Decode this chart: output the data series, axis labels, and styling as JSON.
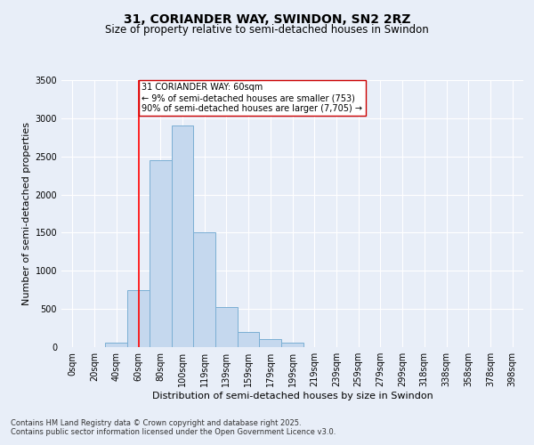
{
  "title_line1": "31, CORIANDER WAY, SWINDON, SN2 2RZ",
  "title_line2": "Size of property relative to semi-detached houses in Swindon",
  "xlabel": "Distribution of semi-detached houses by size in Swindon",
  "ylabel": "Number of semi-detached properties",
  "categories": [
    "0sqm",
    "20sqm",
    "40sqm",
    "60sqm",
    "80sqm",
    "100sqm",
    "119sqm",
    "139sqm",
    "159sqm",
    "179sqm",
    "199sqm",
    "219sqm",
    "239sqm",
    "259sqm",
    "279sqm",
    "299sqm",
    "318sqm",
    "338sqm",
    "358sqm",
    "378sqm",
    "398sqm"
  ],
  "values": [
    0,
    0,
    60,
    750,
    2450,
    2900,
    1500,
    520,
    200,
    100,
    60,
    0,
    0,
    0,
    0,
    0,
    0,
    0,
    0,
    0,
    0
  ],
  "bar_color": "#c5d8ee",
  "bar_edge_color": "#7bafd4",
  "bar_edge_width": 0.7,
  "vline_x_index": 3,
  "vline_color": "#ff0000",
  "ylim": [
    0,
    3500
  ],
  "yticks": [
    0,
    500,
    1000,
    1500,
    2000,
    2500,
    3000,
    3500
  ],
  "annotation_text": "31 CORIANDER WAY: 60sqm\n← 9% of semi-detached houses are smaller (753)\n90% of semi-detached houses are larger (7,705) →",
  "annotation_box_facecolor": "#ffffff",
  "annotation_box_edgecolor": "#cc0000",
  "footer_text": "Contains HM Land Registry data © Crown copyright and database right 2025.\nContains public sector information licensed under the Open Government Licence v3.0.",
  "background_color": "#e8eef8",
  "plot_background_color": "#e8eef8",
  "grid_color": "#ffffff",
  "title_fontsize": 10,
  "subtitle_fontsize": 8.5,
  "axis_label_fontsize": 8,
  "tick_fontsize": 7,
  "annotation_fontsize": 7,
  "footer_fontsize": 6
}
